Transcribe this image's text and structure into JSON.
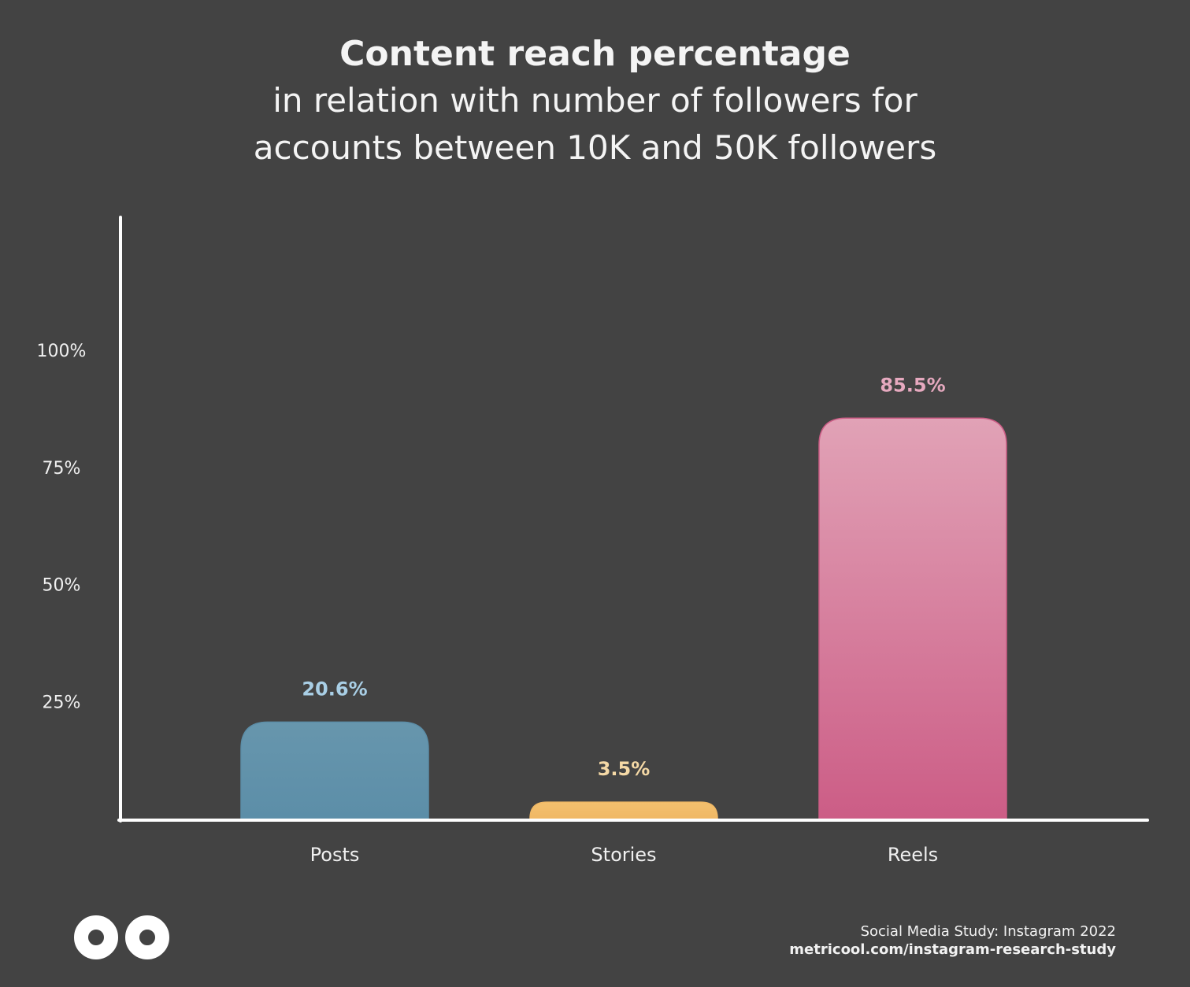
{
  "chart_data": {
    "type": "bar",
    "title": "Content reach percentage",
    "subtitle_lines": [
      "in relation with number of followers for",
      "accounts between 10K and 50K followers"
    ],
    "categories": [
      "Posts",
      "Stories",
      "Reels"
    ],
    "values": [
      20.6,
      3.5,
      85.5
    ],
    "data_labels": [
      "20.6%",
      "3.5%",
      "85.5%"
    ],
    "yticks": [
      25,
      50,
      75,
      100
    ],
    "ytick_labels": [
      "25%",
      "50%",
      "75%",
      "100%"
    ],
    "ylim": [
      0,
      100
    ],
    "grid": false,
    "colors": {
      "Posts": {
        "top": "#6796ad",
        "bottom": "#5c8ea8",
        "label": "#a9cfe6"
      },
      "Stories": {
        "top": "#f3c06e",
        "bottom": "#f0b865",
        "label": "#f5d9a6"
      },
      "Reels": {
        "top": "#e1a2b6",
        "bottom": "#cc5d86",
        "label": "#e6a9bf"
      }
    }
  },
  "footer": {
    "line1": "Social Media Study: Instagram 2022",
    "line2": "metricool.com/instagram-research-study"
  },
  "logo_icon": "metricool-infinity-logo-icon"
}
